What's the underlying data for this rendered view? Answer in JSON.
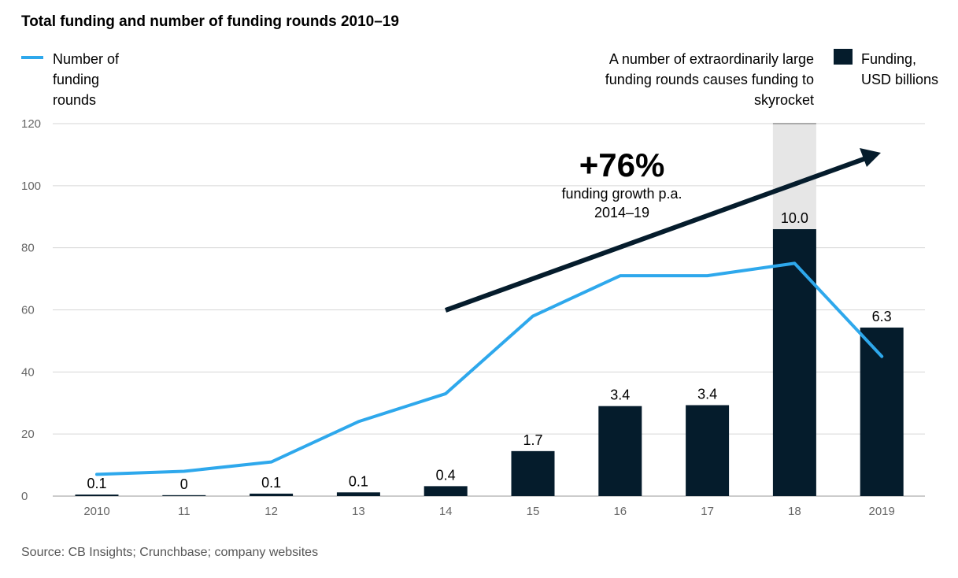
{
  "title": "Total funding and number of funding rounds 2010–19",
  "legend": {
    "line_label": "Number of funding rounds",
    "bar_label": "Funding, USD billions"
  },
  "annotation_top": "A number of extraordinarily large funding rounds causes funding to skyrocket",
  "growth": {
    "value": "+76%",
    "text": "funding growth p.a. 2014–19"
  },
  "source": "Source: CB Insights; Crunchbase; company websites",
  "colors": {
    "bar": "#051c2c",
    "line": "#2ea8ec",
    "overflow": "#e6e6e6",
    "arrow": "#051c2c"
  },
  "chart_data": {
    "type": "bar",
    "categories": [
      "2010",
      "11",
      "12",
      "13",
      "14",
      "15",
      "16",
      "17",
      "18",
      "2019"
    ],
    "ylim": [
      0,
      120
    ],
    "yticks": [
      0,
      20,
      40,
      60,
      80,
      100,
      120
    ],
    "series": [
      {
        "name": "Funding, USD billions",
        "type": "bar",
        "values": [
          0.1,
          0,
          0.1,
          0.1,
          0.4,
          1.7,
          3.4,
          3.4,
          10.0,
          6.3
        ],
        "labels": [
          "0.1",
          "0",
          "0.1",
          "0.1",
          "0.4",
          "1.7",
          "3.4",
          "3.4",
          "10.0",
          "6.3"
        ],
        "bar_heights_on_axis": [
          0.5,
          0.3,
          0.8,
          1.2,
          3.2,
          14.5,
          29,
          29.3,
          86,
          54.3
        ],
        "broken_bar_index": 8
      },
      {
        "name": "Number of funding rounds",
        "type": "line",
        "values": [
          7,
          8,
          11,
          24,
          33,
          58,
          71,
          71,
          75,
          45
        ]
      }
    ],
    "grid": true
  }
}
